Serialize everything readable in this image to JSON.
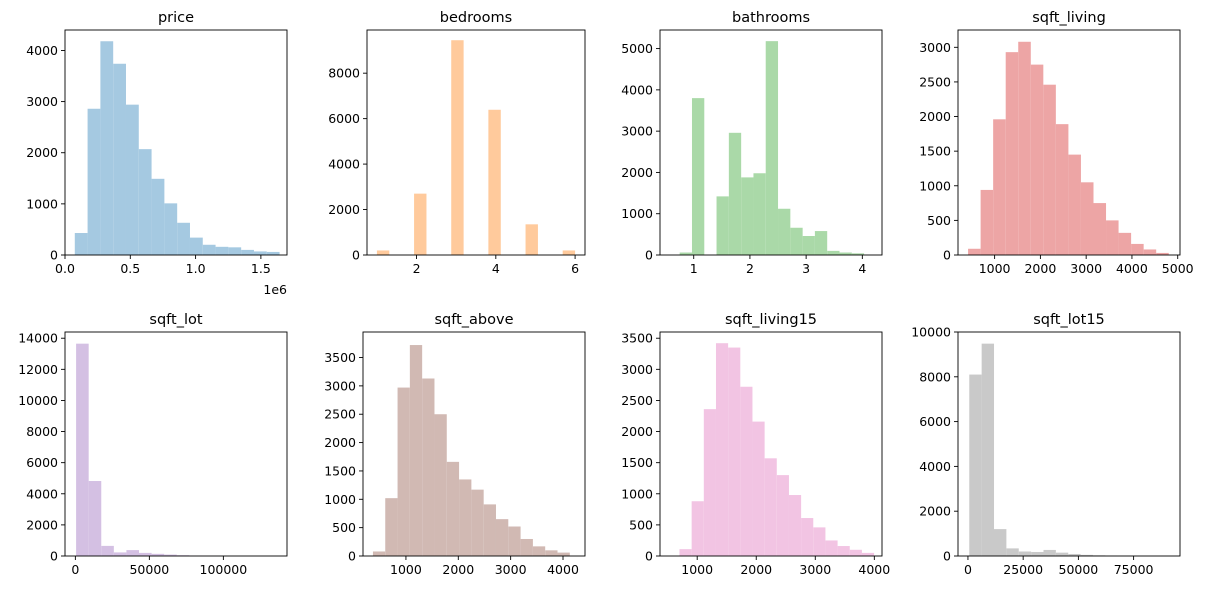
{
  "chart_data": [
    {
      "type": "bar",
      "title": "price",
      "color": "#a5c9e1",
      "xlim": [
        0,
        1700000
      ],
      "ylim": [
        0,
        4400
      ],
      "xticks": [
        0,
        500000,
        1000000,
        1500000
      ],
      "xtick_labels": [
        "0.0",
        "0.5",
        "1.0",
        "1.5"
      ],
      "yticks": [
        0,
        1000,
        2000,
        3000,
        4000
      ],
      "ytick_labels": [
        "0",
        "1000",
        "2000",
        "3000",
        "4000"
      ],
      "x_offset_label": "1e6",
      "bin_edges": [
        75000,
        173000,
        271000,
        369000,
        467000,
        565000,
        663000,
        761000,
        859000,
        957000,
        1055000,
        1153000,
        1251000,
        1349000,
        1447000,
        1545000,
        1643000
      ],
      "values": [
        430,
        2860,
        4180,
        3740,
        2940,
        2070,
        1490,
        1010,
        630,
        340,
        200,
        160,
        150,
        100,
        70,
        60
      ]
    },
    {
      "type": "bar",
      "title": "bedrooms",
      "color": "#ffca9c",
      "xlim": [
        0.75,
        6.25
      ],
      "ylim": [
        0,
        9900
      ],
      "xticks": [
        2,
        4,
        6
      ],
      "xtick_labels": [
        "2",
        "4",
        "6"
      ],
      "yticks": [
        0,
        2000,
        4000,
        6000,
        8000
      ],
      "ytick_labels": [
        "0",
        "2000",
        "4000",
        "6000",
        "8000"
      ],
      "bin_edges": [
        1.0,
        1.3125,
        1.625,
        1.9375,
        2.25,
        2.5625,
        2.875,
        3.1875,
        3.5,
        3.8125,
        4.125,
        4.4375,
        4.75,
        5.0625,
        5.375,
        5.6875,
        6.0
      ],
      "values": [
        200,
        0,
        0,
        2700,
        0,
        0,
        9450,
        0,
        0,
        6390,
        0,
        0,
        1350,
        0,
        0,
        200
      ]
    },
    {
      "type": "bar",
      "title": "bathrooms",
      "color": "#aad9a8",
      "xlim": [
        0.4,
        4.35
      ],
      "ylim": [
        0,
        5450
      ],
      "xticks": [
        1,
        2,
        3,
        4
      ],
      "xtick_labels": [
        "1",
        "2",
        "3",
        "4"
      ],
      "yticks": [
        0,
        1000,
        2000,
        3000,
        4000,
        5000
      ],
      "ytick_labels": [
        "0",
        "1000",
        "2000",
        "3000",
        "4000",
        "5000"
      ],
      "bin_edges": [
        0.75,
        0.969,
        1.188,
        1.406,
        1.625,
        1.844,
        2.063,
        2.281,
        2.5,
        2.719,
        2.938,
        3.156,
        3.375,
        3.594,
        3.813,
        4.031,
        4.25
      ],
      "values": [
        60,
        3800,
        0,
        1420,
        2960,
        1880,
        1980,
        5180,
        1120,
        660,
        460,
        580,
        100,
        60,
        40,
        0
      ]
    },
    {
      "type": "bar",
      "title": "sqft_living",
      "color": "#eda5a5",
      "xlim": [
        200,
        5050
      ],
      "ylim": [
        0,
        3250
      ],
      "xticks": [
        1000,
        2000,
        3000,
        4000,
        5000
      ],
      "xtick_labels": [
        "1000",
        "2000",
        "3000",
        "4000",
        "5000"
      ],
      "yticks": [
        0,
        500,
        1000,
        1500,
        2000,
        2500,
        3000
      ],
      "ytick_labels": [
        "0",
        "500",
        "1000",
        "1500",
        "2000",
        "2500",
        "3000"
      ],
      "bin_edges": [
        420,
        694,
        968,
        1242,
        1516,
        1790,
        2064,
        2338,
        2612,
        2886,
        3160,
        3434,
        3708,
        3982,
        4256,
        4530,
        4804
      ],
      "values": [
        90,
        940,
        1960,
        2930,
        3080,
        2750,
        2460,
        1890,
        1450,
        1050,
        750,
        500,
        320,
        160,
        80,
        30
      ]
    },
    {
      "type": "bar",
      "title": "sqft_lot",
      "color": "#d4c0e3",
      "xlim": [
        -7000,
        143000
      ],
      "ylim": [
        0,
        14400
      ],
      "xticks": [
        0,
        50000,
        100000
      ],
      "xtick_labels": [
        "0",
        "50000",
        "100000"
      ],
      "yticks": [
        0,
        2000,
        4000,
        6000,
        8000,
        10000,
        12000,
        14000
      ],
      "ytick_labels": [
        "0",
        "2000",
        "4000",
        "6000",
        "8000",
        "10000",
        "12000",
        "14000"
      ],
      "bin_edges": [
        500,
        9000,
        17500,
        26000,
        34500,
        43000,
        51500,
        60000,
        68500,
        77000,
        85500,
        94000,
        102500,
        111000,
        119500,
        128000,
        136500
      ],
      "values": [
        13650,
        4820,
        650,
        230,
        380,
        200,
        140,
        90,
        50,
        20,
        10,
        10,
        5,
        5,
        5,
        5
      ]
    },
    {
      "type": "bar",
      "title": "sqft_above",
      "color": "#d1b9b3",
      "xlim": [
        180,
        4420
      ],
      "ylim": [
        0,
        3950
      ],
      "xticks": [
        1000,
        2000,
        3000,
        4000
      ],
      "xtick_labels": [
        "1000",
        "2000",
        "3000",
        "4000"
      ],
      "yticks": [
        0,
        500,
        1000,
        1500,
        2000,
        2500,
        3000,
        3500
      ],
      "ytick_labels": [
        "0",
        "500",
        "1000",
        "1500",
        "2000",
        "2500",
        "3000",
        "3500"
      ],
      "bin_edges": [
        370,
        605,
        840,
        1075,
        1310,
        1545,
        1780,
        2015,
        2250,
        2485,
        2720,
        2955,
        3190,
        3425,
        3660,
        3895,
        4130
      ],
      "values": [
        80,
        1020,
        2970,
        3720,
        3130,
        2500,
        1660,
        1350,
        1170,
        910,
        650,
        520,
        300,
        170,
        100,
        60
      ]
    },
    {
      "type": "bar",
      "title": "sqft_living15",
      "color": "#f2c4e3",
      "xlim": [
        370,
        4130
      ],
      "ylim": [
        0,
        3600
      ],
      "xticks": [
        1000,
        2000,
        3000,
        4000
      ],
      "xtick_labels": [
        "1000",
        "2000",
        "3000",
        "4000"
      ],
      "yticks": [
        0,
        500,
        1000,
        1500,
        2000,
        2500,
        3000,
        3500
      ],
      "ytick_labels": [
        "0",
        "500",
        "1000",
        "1500",
        "2000",
        "2500",
        "3000",
        "3500"
      ],
      "bin_edges": [
        700,
        906,
        1112,
        1318,
        1524,
        1730,
        1936,
        2142,
        2348,
        2554,
        2760,
        2966,
        3172,
        3378,
        3584,
        3790,
        3996
      ],
      "values": [
        110,
        880,
        2360,
        3420,
        3350,
        2720,
        2160,
        1570,
        1300,
        980,
        610,
        460,
        250,
        160,
        100,
        50
      ]
    },
    {
      "type": "bar",
      "title": "sqft_lot15",
      "color": "#c9c9c9",
      "xlim": [
        -4500,
        96000
      ],
      "ylim": [
        0,
        10000
      ],
      "xticks": [
        0,
        25000,
        50000,
        75000
      ],
      "xtick_labels": [
        "0",
        "25000",
        "50000",
        "75000"
      ],
      "yticks": [
        0,
        2000,
        4000,
        6000,
        8000,
        10000
      ],
      "ytick_labels": [
        "0",
        "2000",
        "4000",
        "6000",
        "8000",
        "10000"
      ],
      "bin_edges": [
        600,
        6200,
        11800,
        17400,
        23000,
        28600,
        34200,
        39800,
        45400,
        51000,
        56600,
        62200,
        67800,
        73400,
        79000,
        84600,
        90200
      ],
      "values": [
        8100,
        9480,
        1200,
        340,
        200,
        180,
        270,
        150,
        90,
        50,
        30,
        15,
        10,
        5,
        5,
        5
      ]
    }
  ]
}
